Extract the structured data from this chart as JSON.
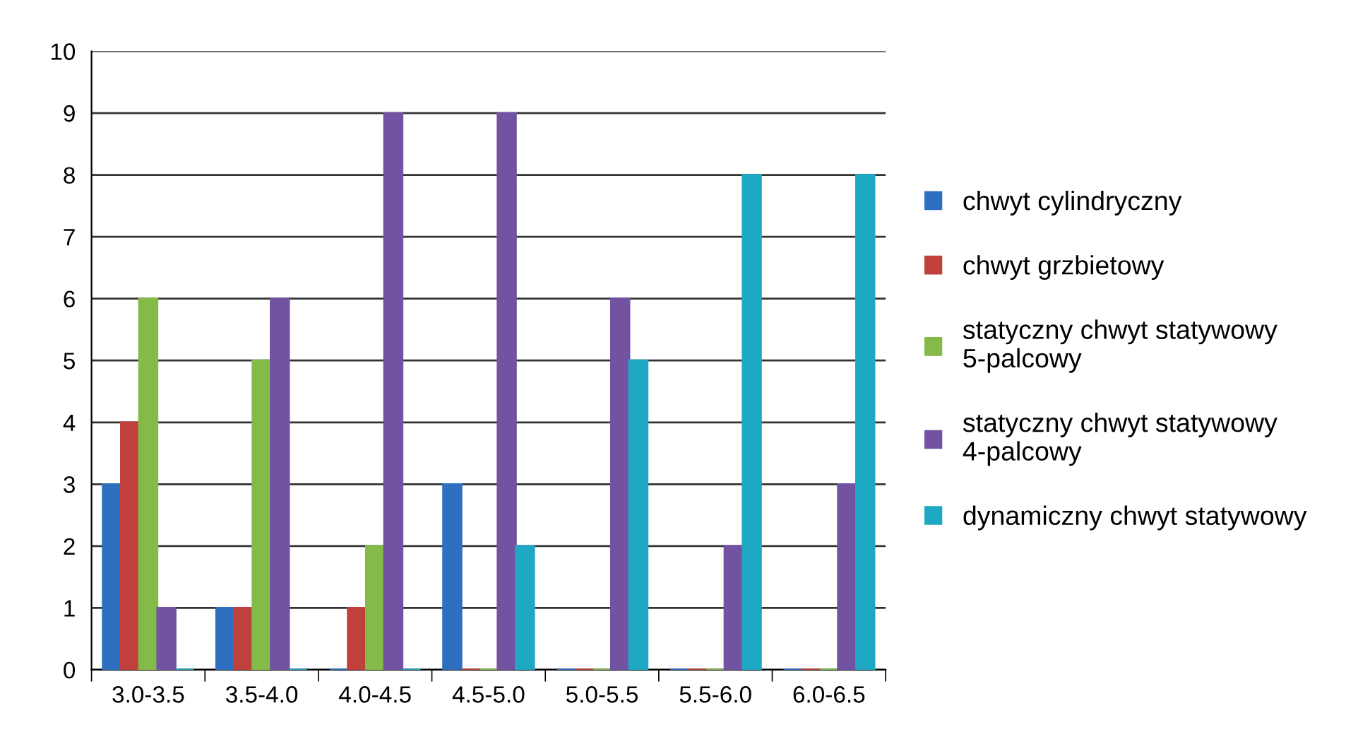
{
  "chart_data": {
    "type": "bar",
    "categories": [
      "3.0-3.5",
      "3.5-4.0",
      "4.0-4.5",
      "4.5-5.0",
      "5.0-5.5",
      "5.5-6.0",
      "6.0-6.5"
    ],
    "series": [
      {
        "name": "chwyt cylindryczny",
        "color": "#2e6fc0",
        "values": [
          3,
          1,
          0,
          3,
          0,
          0,
          0
        ]
      },
      {
        "name": "chwyt grzbietowy",
        "color": "#c0403c",
        "values": [
          4,
          1,
          1,
          0,
          0,
          0,
          0
        ]
      },
      {
        "name": "statyczny chwyt statywowy\n5-palcowy",
        "color": "#84bb48",
        "values": [
          6,
          5,
          2,
          0,
          0,
          0,
          0
        ]
      },
      {
        "name": "statyczny chwyt statywowy\n4-palcowy",
        "color": "#7253a2",
        "values": [
          1,
          6,
          9,
          9,
          6,
          2,
          3
        ]
      },
      {
        "name": "dynamiczny chwyt statywowy",
        "color": "#1fa8c4",
        "values": [
          0,
          0,
          0,
          2,
          5,
          8,
          8
        ]
      }
    ],
    "ylim": [
      0,
      10
    ],
    "yticks": [
      0,
      1,
      2,
      3,
      4,
      5,
      6,
      7,
      8,
      9,
      10
    ],
    "grid": "y",
    "legend": "right"
  }
}
